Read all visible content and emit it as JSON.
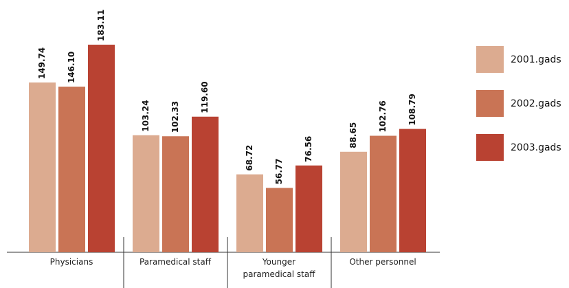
{
  "chart_data": {
    "type": "bar",
    "categories": [
      "Physicians",
      "Paramedical staff",
      "Younger paramedical staff",
      "Other personnel"
    ],
    "series": [
      {
        "name": "2001.gads",
        "color": "#dcab90",
        "values": [
          149.74,
          103.24,
          68.72,
          88.65
        ],
        "value_labels": [
          "149.74",
          "103.24",
          "68.72",
          "88.65"
        ]
      },
      {
        "name": "2002.gads",
        "color": "#c97455",
        "values": [
          146.1,
          102.33,
          56.77,
          102.76
        ],
        "value_labels": [
          "146.10",
          "102.33",
          "56.77",
          "102.76"
        ]
      },
      {
        "name": "2003.gads",
        "color": "#b94232",
        "values": [
          183.11,
          119.6,
          76.56,
          108.79
        ],
        "value_labels": [
          "183.11",
          "119.60",
          "76.56",
          "108.79"
        ]
      }
    ],
    "legend": "right"
  }
}
